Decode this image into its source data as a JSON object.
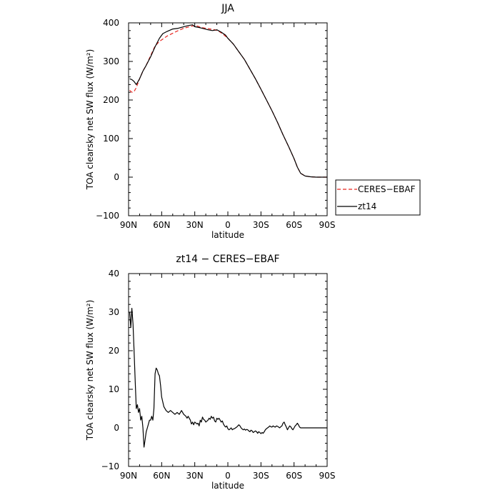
{
  "chart_data": [
    {
      "type": "line",
      "title": "JJA",
      "xlabel": "latitude",
      "ylabel": "TOA clearsky net SW flux (W/m²)",
      "xlim": [
        90,
        -90
      ],
      "ylim": [
        -100,
        400
      ],
      "xticks": [
        90,
        60,
        30,
        0,
        -30,
        -60,
        -90
      ],
      "xtick_labels": [
        "90N",
        "60N",
        "30N",
        "0",
        "30S",
        "60S",
        "90S"
      ],
      "yticks": [
        -100,
        0,
        100,
        200,
        300,
        400
      ],
      "ytick_labels": [
        "−100",
        "0",
        "100",
        "200",
        "300",
        "400"
      ],
      "legend": {
        "position": "right-outside",
        "entries": [
          "CERES−EBAF",
          "zt14"
        ]
      },
      "series": [
        {
          "name": "CERES−EBAF",
          "color": "#e8251f",
          "dash": "dashed",
          "points": [
            [
              89,
              225
            ],
            [
              87,
              220
            ],
            [
              85,
              222
            ],
            [
              83,
              232
            ],
            [
              80,
              255
            ],
            [
              77,
              275
            ],
            [
              74,
              290
            ],
            [
              70,
              315
            ],
            [
              66,
              340
            ],
            [
              62,
              352
            ],
            [
              59,
              358
            ],
            [
              55,
              366
            ],
            [
              50,
              373
            ],
            [
              45,
              380
            ],
            [
              40,
              386
            ],
            [
              36,
              389
            ],
            [
              32,
              392
            ],
            [
              28,
              392
            ],
            [
              24,
              388
            ],
            [
              20,
              386
            ],
            [
              16,
              384
            ],
            [
              12,
              382
            ],
            [
              8,
              378
            ],
            [
              4,
              370
            ],
            [
              0,
              360
            ],
            [
              -5,
              345
            ],
            [
              -10,
              325
            ],
            [
              -15,
              305
            ],
            [
              -20,
              280
            ],
            [
              -25,
              255
            ],
            [
              -30,
              228
            ],
            [
              -35,
              200
            ],
            [
              -40,
              172
            ],
            [
              -45,
              142
            ],
            [
              -50,
              110
            ],
            [
              -55,
              80
            ],
            [
              -60,
              48
            ],
            [
              -63,
              26
            ],
            [
              -66,
              10
            ],
            [
              -70,
              3
            ],
            [
              -75,
              1
            ],
            [
              -80,
              0
            ],
            [
              -85,
              0
            ],
            [
              -90,
              0
            ]
          ]
        },
        {
          "name": "zt14",
          "color": "#000000",
          "dash": "solid",
          "points": [
            [
              89,
              255
            ],
            [
              87,
              253
            ],
            [
              85,
              248
            ],
            [
              83,
              240
            ],
            [
              80,
              255
            ],
            [
              77,
              275
            ],
            [
              74,
              290
            ],
            [
              70,
              312
            ],
            [
              66,
              338
            ],
            [
              62,
              360
            ],
            [
              59,
              372
            ],
            [
              55,
              378
            ],
            [
              50,
              384
            ],
            [
              45,
              386
            ],
            [
              40,
              390
            ],
            [
              36,
              393
            ],
            [
              32,
              395
            ],
            [
              30,
              390
            ],
            [
              26,
              388
            ],
            [
              22,
              385
            ],
            [
              18,
              382
            ],
            [
              14,
              380
            ],
            [
              10,
              382
            ],
            [
              6,
              376
            ],
            [
              2,
              368
            ],
            [
              0,
              360
            ],
            [
              -5,
              345
            ],
            [
              -10,
              325
            ],
            [
              -15,
              305
            ],
            [
              -20,
              280
            ],
            [
              -25,
              255
            ],
            [
              -30,
              228
            ],
            [
              -35,
              200
            ],
            [
              -40,
              172
            ],
            [
              -45,
              142
            ],
            [
              -50,
              110
            ],
            [
              -55,
              80
            ],
            [
              -60,
              48
            ],
            [
              -63,
              26
            ],
            [
              -66,
              10
            ],
            [
              -70,
              3
            ],
            [
              -75,
              1
            ],
            [
              -80,
              0
            ],
            [
              -85,
              0
            ],
            [
              -90,
              0
            ]
          ]
        }
      ]
    },
    {
      "type": "line",
      "title": "zt14 − CERES−EBAF",
      "xlabel": "latitude",
      "ylabel": "TOA clearsky net SW flux (W/m²)",
      "xlim": [
        90,
        -90
      ],
      "ylim": [
        -10,
        40
      ],
      "xticks": [
        90,
        60,
        30,
        0,
        -30,
        -60,
        -90
      ],
      "xtick_labels": [
        "90N",
        "60N",
        "30N",
        "0",
        "30S",
        "60S",
        "90S"
      ],
      "yticks": [
        -10,
        0,
        10,
        20,
        30,
        40
      ],
      "ytick_labels": [
        "−10",
        "0",
        "10",
        "20",
        "30",
        "40"
      ],
      "series": [
        {
          "name": "zt14 − CERES−EBAF",
          "color": "#000000",
          "dash": "solid",
          "points": [
            [
              89,
              30
            ],
            [
              88,
              26
            ],
            [
              87,
              31
            ],
            [
              86,
              27
            ],
            [
              85,
              20
            ],
            [
              84,
              12
            ],
            [
              83,
              5
            ],
            [
              82,
              6
            ],
            [
              81,
              4
            ],
            [
              80,
              5
            ],
            [
              79,
              2
            ],
            [
              78,
              3
            ],
            [
              77,
              0
            ],
            [
              76,
              -5
            ],
            [
              75,
              -3
            ],
            [
              74,
              -1
            ],
            [
              73,
              0
            ],
            [
              72,
              1
            ],
            [
              71,
              2
            ],
            [
              70,
              2
            ],
            [
              69,
              3
            ],
            [
              68,
              2
            ],
            [
              67,
              5
            ],
            [
              66,
              14
            ],
            [
              65,
              15.5
            ],
            [
              64,
              15
            ],
            [
              63,
              14
            ],
            [
              62,
              13.5
            ],
            [
              61,
              11
            ],
            [
              60,
              8
            ],
            [
              58,
              5.5
            ],
            [
              56,
              4.5
            ],
            [
              54,
              4
            ],
            [
              52,
              4.5
            ],
            [
              50,
              4
            ],
            [
              48,
              3.5
            ],
            [
              46,
              4
            ],
            [
              44,
              3.5
            ],
            [
              42,
              4.5
            ],
            [
              40,
              3.5
            ],
            [
              38,
              3
            ],
            [
              37,
              2.5
            ],
            [
              36,
              3
            ],
            [
              34,
              2
            ],
            [
              33,
              1
            ],
            [
              32,
              1.5
            ],
            [
              31,
              0.8
            ],
            [
              30,
              1.5
            ],
            [
              28,
              1
            ],
            [
              27,
              1.2
            ],
            [
              26,
              0.5
            ],
            [
              25,
              2
            ],
            [
              24,
              1.5
            ],
            [
              23,
              2.8
            ],
            [
              22,
              2.2
            ],
            [
              21,
              2
            ],
            [
              20,
              1.5
            ],
            [
              18,
              2
            ],
            [
              17,
              2.5
            ],
            [
              16,
              2.2
            ],
            [
              15,
              3
            ],
            [
              14,
              2.5
            ],
            [
              13,
              2.8
            ],
            [
              12,
              1.8
            ],
            [
              11,
              1.5
            ],
            [
              10,
              2.5
            ],
            [
              9,
              2.2
            ],
            [
              8,
              2.5
            ],
            [
              7,
              2
            ],
            [
              6,
              1.5
            ],
            [
              5,
              1.8
            ],
            [
              4,
              1
            ],
            [
              3,
              0.5
            ],
            [
              2,
              0.2
            ],
            [
              1,
              0.5
            ],
            [
              0,
              -0.2
            ],
            [
              -1,
              -0.5
            ],
            [
              -2,
              -0.3
            ],
            [
              -3,
              0
            ],
            [
              -4,
              -0.5
            ],
            [
              -5,
              -0.3
            ],
            [
              -6,
              -0.2
            ],
            [
              -7,
              0
            ],
            [
              -8,
              0.2
            ],
            [
              -9,
              0.5
            ],
            [
              -10,
              0.8
            ],
            [
              -11,
              0.5
            ],
            [
              -12,
              0
            ],
            [
              -13,
              -0.3
            ],
            [
              -14,
              -0.5
            ],
            [
              -15,
              -0.3
            ],
            [
              -16,
              -0.6
            ],
            [
              -17,
              -0.4
            ],
            [
              -18,
              -0.5
            ],
            [
              -19,
              -0.8
            ],
            [
              -20,
              -1
            ],
            [
              -21,
              -0.6
            ],
            [
              -22,
              -0.8
            ],
            [
              -23,
              -1.2
            ],
            [
              -24,
              -1
            ],
            [
              -25,
              -0.8
            ],
            [
              -26,
              -1
            ],
            [
              -27,
              -1.4
            ],
            [
              -28,
              -1
            ],
            [
              -29,
              -1.2
            ],
            [
              -30,
              -1.5
            ],
            [
              -31,
              -1.2
            ],
            [
              -32,
              -1.4
            ],
            [
              -33,
              -1
            ],
            [
              -34,
              -0.5
            ],
            [
              -35,
              -0.2
            ],
            [
              -36,
              0
            ],
            [
              -37,
              0.2
            ],
            [
              -38,
              0.5
            ],
            [
              -39,
              0.3
            ],
            [
              -40,
              0.2
            ],
            [
              -41,
              0.5
            ],
            [
              -42,
              0.3
            ],
            [
              -43,
              0.2
            ],
            [
              -44,
              0.5
            ],
            [
              -45,
              0.4
            ],
            [
              -46,
              0.2
            ],
            [
              -47,
              0
            ],
            [
              -48,
              0.3
            ],
            [
              -49,
              0.5
            ],
            [
              -50,
              1.2
            ],
            [
              -51,
              1.5
            ],
            [
              -52,
              0.8
            ],
            [
              -53,
              0.2
            ],
            [
              -54,
              -0.5
            ],
            [
              -55,
              0
            ],
            [
              -56,
              0.5
            ],
            [
              -57,
              0.3
            ],
            [
              -58,
              -0.2
            ],
            [
              -59,
              -0.5
            ],
            [
              -60,
              0
            ],
            [
              -61,
              0.5
            ],
            [
              -62,
              0.8
            ],
            [
              -63,
              1.2
            ],
            [
              -64,
              0.8
            ],
            [
              -65,
              0.2
            ],
            [
              -66,
              0
            ],
            [
              -70,
              0
            ],
            [
              -75,
              0
            ],
            [
              -80,
              0
            ],
            [
              -85,
              0
            ],
            [
              -90,
              0
            ]
          ]
        }
      ]
    }
  ]
}
